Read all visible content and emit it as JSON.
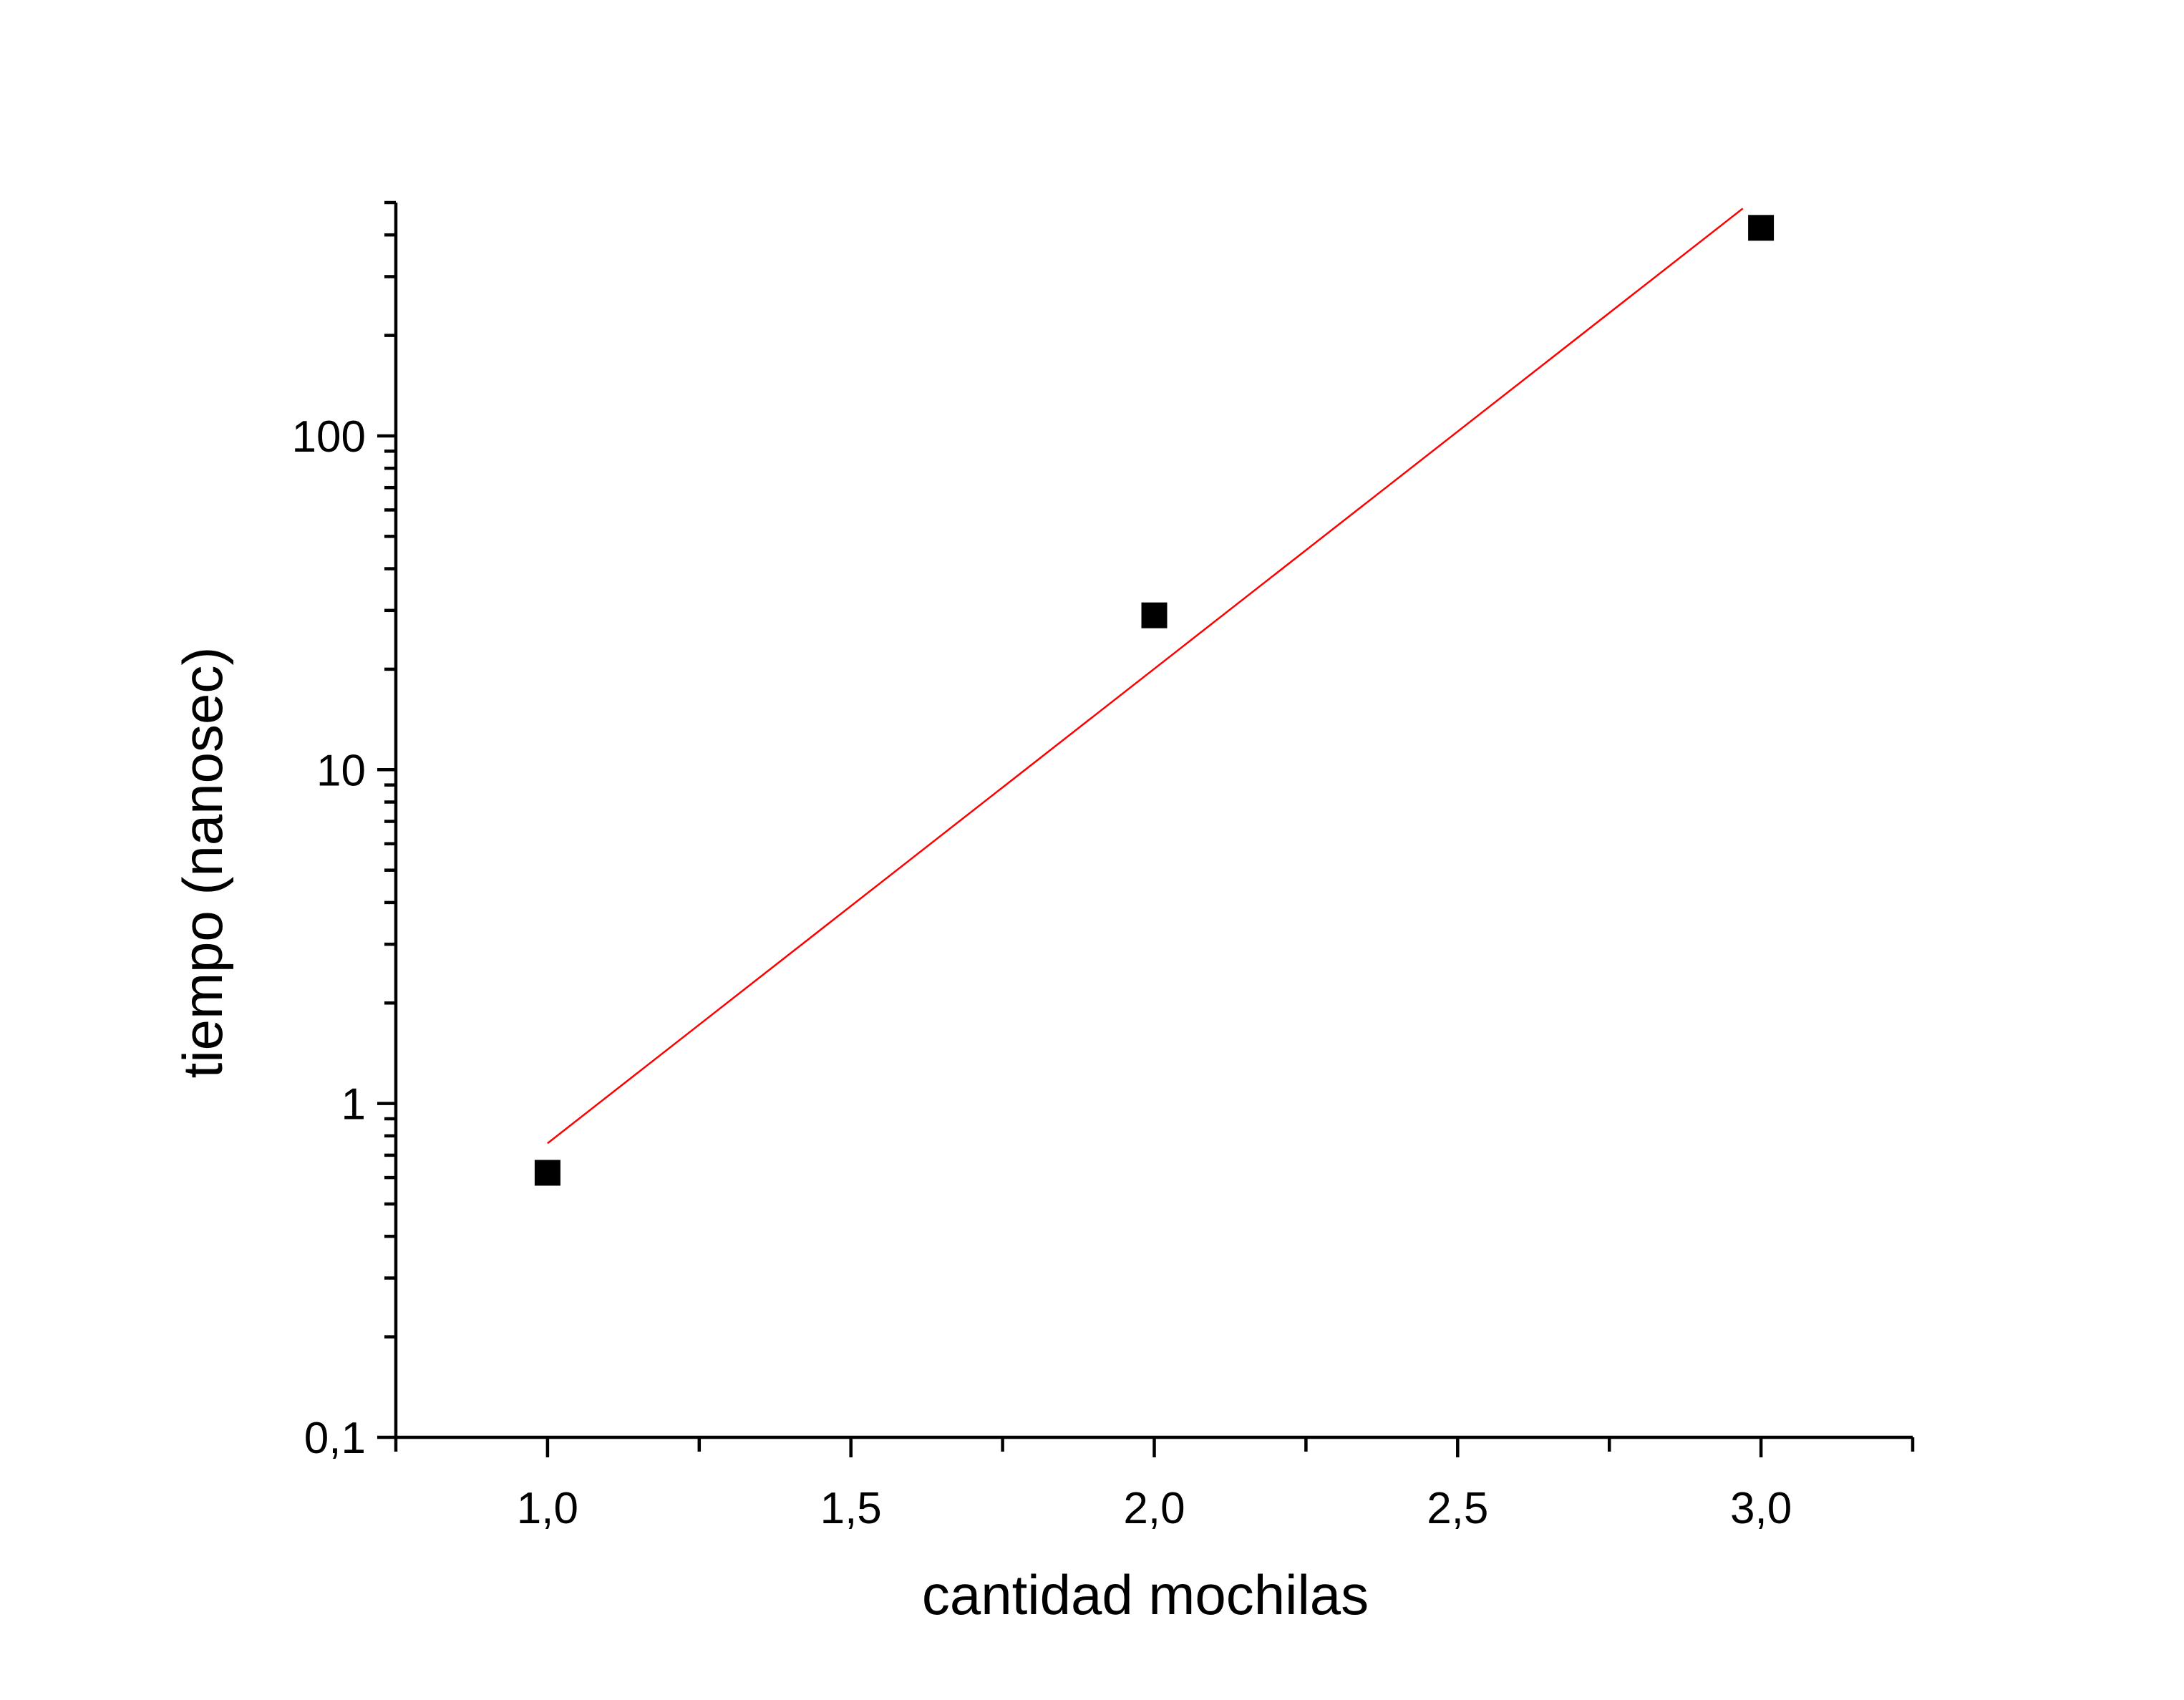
{
  "chart_data": {
    "type": "scatter",
    "title": "",
    "xlabel": "cantidad mochilas",
    "ylabel": "tiempo (nanosec)",
    "xlim": [
      0.75,
      3.25
    ],
    "ylim": [
      0.1,
      500
    ],
    "yscale": "log",
    "grid": false,
    "legend": "none",
    "x_ticks": [
      1.0,
      1.5,
      2.0,
      2.5,
      3.0
    ],
    "x_tick_labels": [
      "1,0",
      "1,5",
      "2,0",
      "2,5",
      "3,0"
    ],
    "y_ticks": [
      0.1,
      1,
      10,
      100
    ],
    "y_tick_labels": [
      "0,1",
      "1",
      "10",
      "100"
    ],
    "series": [
      {
        "type": "scatter",
        "marker": "square",
        "color": "#000000",
        "x": [
          1,
          2,
          3
        ],
        "y": [
          0.62,
          29,
          420
        ]
      },
      {
        "type": "line",
        "color": "#ff0000",
        "x": [
          1,
          2.97
        ],
        "y": [
          0.76,
          480
        ]
      }
    ]
  }
}
